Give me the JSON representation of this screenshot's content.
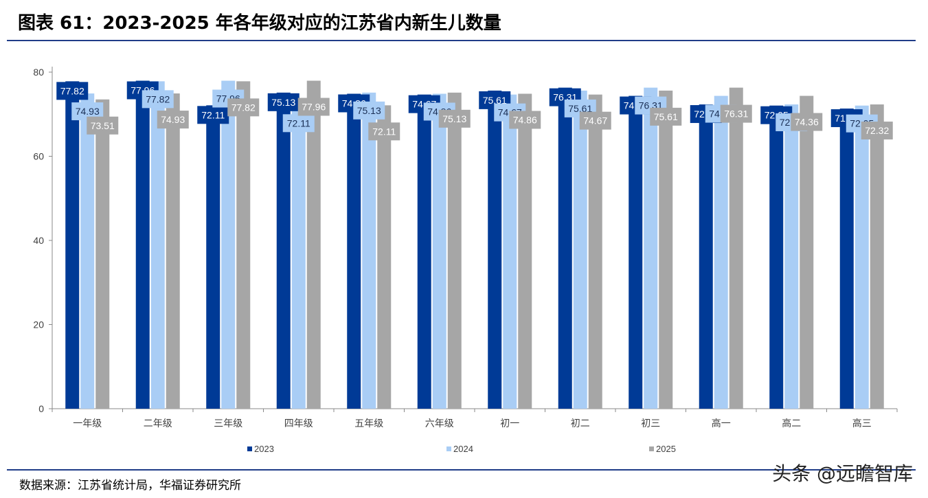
{
  "title": "图表 61：2023-2025 年各年级对应的江苏省内新生儿数量",
  "source": "数据来源：江苏省统计局，华福证券研究所",
  "watermark": "头条 @远瞻智库",
  "colors": {
    "s2023": "#003a96",
    "s2024": "#a9cdf5",
    "s2025": "#a6a6a6",
    "rule": "#1f3c88"
  },
  "chart_data": {
    "type": "bar",
    "ylim": [
      0,
      80
    ],
    "yticks": [
      0,
      20,
      40,
      60,
      80
    ],
    "grid": false,
    "legend_position": "bottom",
    "categories": [
      "一年级",
      "二年级",
      "三年级",
      "四年级",
      "五年级",
      "六年级",
      "初一",
      "初二",
      "初三",
      "高一",
      "高二",
      "高三"
    ],
    "series": [
      {
        "name": "2023",
        "values": [
          77.82,
          77.96,
          72.11,
          75.13,
          74.86,
          74.67,
          75.61,
          76.31,
          74.36,
          72.32,
          72.05,
          71.34
        ]
      },
      {
        "name": "2024",
        "values": [
          74.93,
          77.82,
          77.96,
          72.11,
          75.13,
          74.86,
          74.67,
          75.61,
          76.31,
          74.36,
          72.32,
          72.05
        ]
      },
      {
        "name": "2025",
        "values": [
          73.51,
          74.93,
          77.82,
          77.96,
          72.11,
          75.13,
          74.86,
          74.67,
          75.61,
          76.31,
          74.36,
          72.32
        ]
      }
    ]
  }
}
